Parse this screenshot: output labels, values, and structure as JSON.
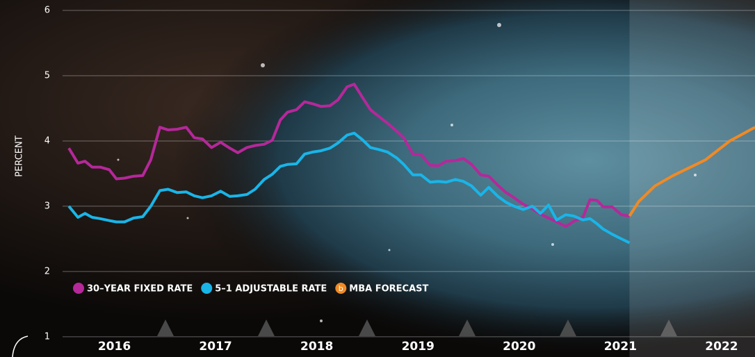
{
  "chart_data": {
    "type": "line",
    "y_label": "PERCENT",
    "xlim": [
      2015.37,
      2022.83
    ],
    "ylim": [
      0.69,
      6.16
    ],
    "xticks": [
      {
        "value": 2016.5,
        "label": "2016"
      },
      {
        "value": 2017.5,
        "label": "2017"
      },
      {
        "value": 2018.5,
        "label": "2018"
      },
      {
        "value": 2019.5,
        "label": "2019"
      },
      {
        "value": 2020.5,
        "label": "2020"
      },
      {
        "value": 2021.5,
        "label": "2021"
      },
      {
        "value": 2022.5,
        "label": "2022"
      }
    ],
    "yticks": [
      1,
      2,
      3,
      4,
      5,
      6
    ],
    "grid": true,
    "legend": "bottom-left",
    "series": [
      {
        "name": "30–YEAR FIXED RATE",
        "color": "#b5289a",
        "x": [
          2016.05,
          2016.14,
          2016.21,
          2016.28,
          2016.36,
          2016.45,
          2016.52,
          2016.6,
          2016.69,
          2016.78,
          2016.86,
          2016.95,
          2017.03,
          2017.12,
          2017.21,
          2017.29,
          2017.37,
          2017.46,
          2017.55,
          2017.64,
          2017.72,
          2017.81,
          2017.89,
          2017.98,
          2018.06,
          2018.14,
          2018.21,
          2018.3,
          2018.38,
          2018.46,
          2018.54,
          2018.63,
          2018.71,
          2018.8,
          2018.87,
          2018.95,
          2019.03,
          2019.11,
          2019.2,
          2019.29,
          2019.36,
          2019.45,
          2019.53,
          2019.62,
          2019.7,
          2019.78,
          2019.87,
          2019.95,
          2020.03,
          2020.12,
          2020.2,
          2020.29,
          2020.37,
          2020.45,
          2020.54,
          2020.63,
          2020.71,
          2020.79,
          2020.87,
          2020.96,
          2021.04,
          2021.13,
          2021.2,
          2021.27,
          2021.33,
          2021.42,
          2021.51,
          2021.59
        ],
        "values": [
          3.89,
          3.66,
          3.69,
          3.6,
          3.6,
          3.56,
          3.42,
          3.43,
          3.46,
          3.47,
          3.71,
          4.21,
          4.17,
          4.18,
          4.21,
          4.05,
          4.03,
          3.9,
          3.98,
          3.89,
          3.82,
          3.9,
          3.93,
          3.95,
          4.01,
          4.32,
          4.44,
          4.48,
          4.6,
          4.57,
          4.53,
          4.54,
          4.63,
          4.83,
          4.87,
          4.67,
          4.48,
          4.38,
          4.27,
          4.15,
          4.05,
          3.8,
          3.79,
          3.63,
          3.62,
          3.69,
          3.7,
          3.73,
          3.64,
          3.48,
          3.46,
          3.32,
          3.21,
          3.13,
          3.03,
          2.96,
          2.88,
          2.82,
          2.76,
          2.69,
          2.77,
          2.83,
          3.1,
          3.09,
          2.99,
          2.99,
          2.87,
          2.85
        ]
      },
      {
        "name": "5–1 ADJUSTABLE RATE",
        "color": "#19b5e8",
        "x": [
          2016.05,
          2016.14,
          2016.21,
          2016.28,
          2016.36,
          2016.45,
          2016.52,
          2016.6,
          2016.69,
          2016.78,
          2016.86,
          2016.95,
          2017.03,
          2017.12,
          2017.21,
          2017.29,
          2017.37,
          2017.46,
          2017.55,
          2017.64,
          2017.72,
          2017.81,
          2017.89,
          2017.98,
          2018.06,
          2018.14,
          2018.21,
          2018.3,
          2018.38,
          2018.46,
          2018.54,
          2018.63,
          2018.71,
          2018.8,
          2018.87,
          2018.95,
          2019.03,
          2019.11,
          2019.2,
          2019.29,
          2019.36,
          2019.45,
          2019.53,
          2019.62,
          2019.7,
          2019.78,
          2019.87,
          2019.95,
          2020.03,
          2020.12,
          2020.2,
          2020.29,
          2020.37,
          2020.45,
          2020.54,
          2020.63,
          2020.71,
          2020.79,
          2020.87,
          2020.96,
          2021.04,
          2021.13,
          2021.2,
          2021.27,
          2021.33,
          2021.42,
          2021.51,
          2021.59
        ],
        "values": [
          3.0,
          2.83,
          2.89,
          2.83,
          2.81,
          2.78,
          2.76,
          2.76,
          2.82,
          2.84,
          3.0,
          3.24,
          3.26,
          3.21,
          3.22,
          3.16,
          3.13,
          3.16,
          3.23,
          3.15,
          3.16,
          3.18,
          3.26,
          3.41,
          3.49,
          3.61,
          3.64,
          3.65,
          3.8,
          3.83,
          3.85,
          3.89,
          3.97,
          4.09,
          4.12,
          4.02,
          3.9,
          3.87,
          3.83,
          3.74,
          3.64,
          3.48,
          3.48,
          3.37,
          3.38,
          3.37,
          3.41,
          3.38,
          3.31,
          3.17,
          3.29,
          3.15,
          3.06,
          3.0,
          2.95,
          3.0,
          2.89,
          3.02,
          2.79,
          2.87,
          2.85,
          2.79,
          2.81,
          2.73,
          2.65,
          2.57,
          2.5,
          2.44
        ]
      },
      {
        "name": "MBA FORECAST",
        "color": "#f08a24",
        "marker_text": "b",
        "x": [
          2021.59,
          2021.68,
          2021.84,
          2022.02,
          2022.34,
          2022.58,
          2022.83
        ],
        "values": [
          2.85,
          3.07,
          3.31,
          3.47,
          3.71,
          4.0,
          4.21
        ]
      }
    ]
  }
}
